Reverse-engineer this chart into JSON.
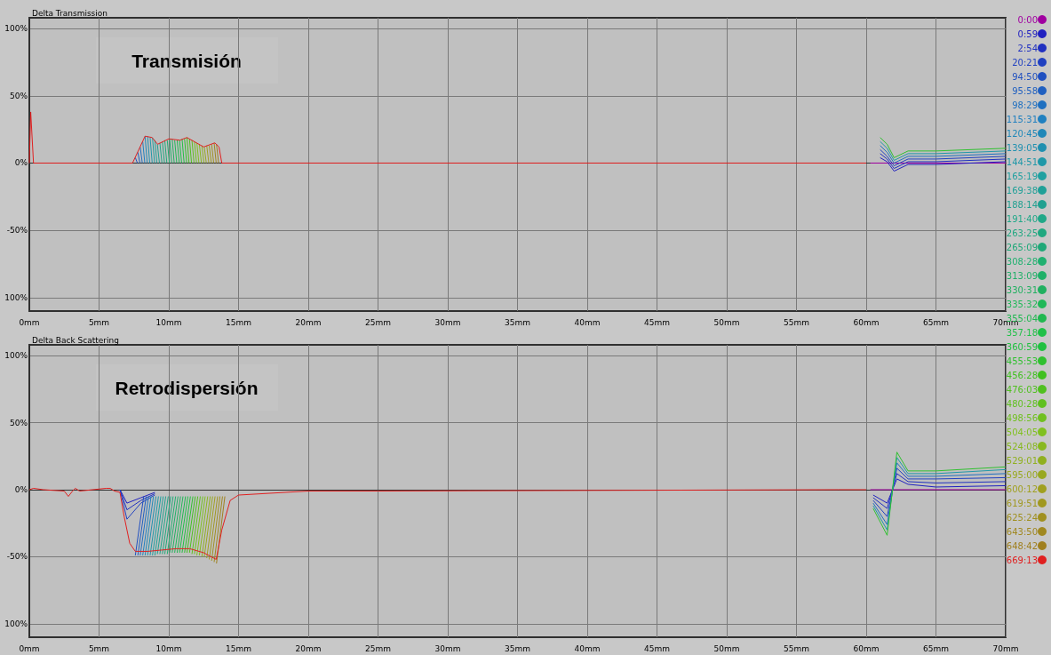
{
  "chart_data": [
    {
      "type": "line",
      "title": "Delta Transmission",
      "annotations": [
        "Transmisión"
      ],
      "legend": "right",
      "grid": true,
      "marker": "none",
      "line_style": "solid",
      "xlim": [
        0,
        70
      ],
      "xticks": [
        {
          "value": 0,
          "label": "0mm"
        },
        {
          "value": 5,
          "label": "5mm"
        },
        {
          "value": 10,
          "label": "10mm"
        },
        {
          "value": 15,
          "label": "15mm"
        },
        {
          "value": 20,
          "label": "20mm"
        },
        {
          "value": 25,
          "label": "25mm"
        },
        {
          "value": 30,
          "label": "30mm"
        },
        {
          "value": 35,
          "label": "35mm"
        },
        {
          "value": 40,
          "label": "40mm"
        },
        {
          "value": 45,
          "label": "45mm"
        },
        {
          "value": 50,
          "label": "50mm"
        },
        {
          "value": 55,
          "label": "55mm"
        },
        {
          "value": 60,
          "label": "60mm"
        },
        {
          "value": 65,
          "label": "65mm"
        },
        {
          "value": 70,
          "label": "70mm"
        }
      ],
      "ylim": [
        -110,
        108
      ],
      "yticks": [
        {
          "value": 100,
          "label": "100%"
        },
        {
          "value": 50,
          "label": "50%"
        },
        {
          "value": 0,
          "label": "0%"
        },
        {
          "value": -50,
          "label": "-50%"
        },
        {
          "value": -100,
          "label": "100%"
        }
      ],
      "series": [
        {
          "name": "0:00",
          "color": "#a000a0",
          "x": [
            60.3,
            70
          ],
          "values": [
            0,
            0
          ]
        },
        {
          "name": "0:59",
          "color": "#2020c0",
          "x": [
            61,
            61.5,
            62,
            63,
            65,
            70
          ],
          "values": [
            4,
            1,
            -6,
            -1,
            -1,
            1
          ]
        },
        {
          "name": "2:54",
          "color": "#2030c0",
          "x": [
            61,
            61.5,
            62,
            63,
            65,
            70
          ],
          "values": [
            7,
            3,
            -4,
            1,
            1,
            3
          ]
        },
        {
          "name": "20:21",
          "color": "#2040c0",
          "x": [
            61,
            61.5,
            62,
            63,
            65,
            70
          ],
          "values": [
            10,
            5,
            -2,
            3,
            3,
            5
          ]
        },
        {
          "name": "94:50",
          "color": "#2050c0",
          "x": [
            7.6,
            7.75
          ],
          "values": [
            4,
            0
          ]
        },
        {
          "name": "95:58",
          "color": "#2060c0",
          "x": [
            7.78,
            7.93
          ],
          "values": [
            8,
            0
          ]
        },
        {
          "name": "98:29",
          "color": "#2070c0",
          "x": [
            7.95,
            8.1,
            30,
            61,
            61.5,
            62,
            63,
            65,
            70
          ],
          "values": [
            12,
            0,
            null,
            13,
            8,
            0,
            5,
            5,
            7
          ]
        },
        {
          "name": "115:31",
          "color": "#2080c0",
          "x": [
            8.13,
            8.28
          ],
          "values": [
            16,
            0
          ]
        },
        {
          "name": "120:45",
          "color": "#2088b8",
          "x": [
            8.3,
            8.45
          ],
          "values": [
            20,
            0
          ]
        },
        {
          "name": "139:05",
          "color": "#2090b0",
          "x": [
            8.48,
            8.63
          ],
          "values": [
            20,
            0
          ]
        },
        {
          "name": "144:51",
          "color": "#2098a8",
          "x": [
            8.66,
            8.81,
            30,
            61,
            61.5,
            62,
            63,
            65,
            70
          ],
          "values": [
            19,
            0,
            null,
            16,
            11,
            2,
            7,
            7,
            9
          ]
        },
        {
          "name": "165:19",
          "color": "#20a0a0",
          "x": [
            8.83,
            8.98
          ],
          "values": [
            19,
            0
          ]
        },
        {
          "name": "169:38",
          "color": "#20a098",
          "x": [
            9.0,
            9.15
          ],
          "values": [
            17,
            0
          ]
        },
        {
          "name": "188:14",
          "color": "#20a090",
          "x": [
            9.18,
            9.33
          ],
          "values": [
            14,
            0
          ]
        },
        {
          "name": "191:40",
          "color": "#20a888",
          "x": [
            9.36,
            9.51
          ],
          "values": [
            15,
            0
          ]
        },
        {
          "name": "263:25",
          "color": "#20a880",
          "x": [
            9.54,
            9.69
          ],
          "values": [
            16,
            0
          ]
        },
        {
          "name": "265:09",
          "color": "#20a878",
          "x": [
            9.71,
            9.86
          ],
          "values": [
            17,
            0
          ]
        },
        {
          "name": "308:28",
          "color": "#20b070",
          "x": [
            9.89,
            10.04
          ],
          "values": [
            17,
            0
          ]
        },
        {
          "name": "313:09",
          "color": "#20b068",
          "x": [
            10.06,
            10.21
          ],
          "values": [
            18,
            0
          ]
        },
        {
          "name": "330:31",
          "color": "#20b060",
          "x": [
            10.24,
            10.39
          ],
          "values": [
            18,
            0
          ]
        },
        {
          "name": "335:32",
          "color": "#20b858",
          "x": [
            10.42,
            10.57
          ],
          "values": [
            17,
            0
          ]
        },
        {
          "name": "355:04",
          "color": "#20b850",
          "x": [
            10.6,
            10.75
          ],
          "values": [
            17,
            0
          ]
        },
        {
          "name": "357:18",
          "color": "#20c048",
          "x": [
            10.77,
            10.92
          ],
          "values": [
            17,
            0
          ]
        },
        {
          "name": "360:59",
          "color": "#20c040",
          "x": [
            10.95,
            11.1
          ],
          "values": [
            18,
            0
          ]
        },
        {
          "name": "455:53",
          "color": "#30c030",
          "x": [
            11.13,
            11.28,
            30,
            61,
            61.5,
            62,
            63,
            65,
            70
          ],
          "values": [
            18,
            0,
            null,
            19,
            14,
            4,
            9,
            9,
            11
          ]
        },
        {
          "name": "456:28",
          "color": "#40c020",
          "x": [
            11.3,
            11.45
          ],
          "values": [
            19,
            0
          ]
        },
        {
          "name": "476:03",
          "color": "#50c020",
          "x": [
            11.48,
            11.63
          ],
          "values": [
            18,
            0
          ]
        },
        {
          "name": "480:28",
          "color": "#60c020",
          "x": [
            11.66,
            11.81
          ],
          "values": [
            17,
            0
          ]
        },
        {
          "name": "498:56",
          "color": "#70c020",
          "x": [
            11.84,
            11.99
          ],
          "values": [
            16,
            0
          ]
        },
        {
          "name": "504:05",
          "color": "#80c020",
          "x": [
            12.01,
            12.16
          ],
          "values": [
            15,
            0
          ]
        },
        {
          "name": "524:08",
          "color": "#88b820",
          "x": [
            12.19,
            12.34
          ],
          "values": [
            14,
            0
          ]
        },
        {
          "name": "529:01",
          "color": "#90b020",
          "x": [
            12.37,
            12.52
          ],
          "values": [
            13,
            0
          ]
        },
        {
          "name": "595:00",
          "color": "#98a820",
          "x": [
            12.54,
            12.69
          ],
          "values": [
            12,
            0
          ]
        },
        {
          "name": "600:12",
          "color": "#a0a020",
          "x": [
            12.72,
            12.87
          ],
          "values": [
            13,
            0
          ]
        },
        {
          "name": "619:51",
          "color": "#a09820",
          "x": [
            12.9,
            13.05
          ],
          "values": [
            13,
            0
          ]
        },
        {
          "name": "625:24",
          "color": "#a09020",
          "x": [
            13.07,
            13.22
          ],
          "values": [
            14,
            0
          ]
        },
        {
          "name": "643:50",
          "color": "#a08820",
          "x": [
            13.25,
            13.4
          ],
          "values": [
            15,
            0
          ]
        },
        {
          "name": "648:42",
          "color": "#a08020",
          "x": [
            13.42,
            13.57
          ],
          "values": [
            14,
            0
          ]
        },
        {
          "name": "669:13",
          "color": "#e02020",
          "x": [
            0,
            0.1,
            0.3,
            7.4,
            8.3,
            8.8,
            9.2,
            10,
            10.8,
            11.3,
            12.5,
            13.3,
            13.6,
            13.8,
            60
          ],
          "values": [
            0,
            38,
            0,
            0,
            20,
            19,
            14,
            18,
            17,
            19,
            12,
            15,
            12,
            0,
            0
          ]
        }
      ]
    },
    {
      "type": "line",
      "title": "Delta Back Scattering",
      "annotations": [
        "Retrodispersión"
      ],
      "grid": true,
      "marker": "none",
      "line_style": "solid",
      "xlim": [
        0,
        70
      ],
      "xticks": [
        {
          "value": 0,
          "label": "0mm"
        },
        {
          "value": 5,
          "label": "5mm"
        },
        {
          "value": 10,
          "label": "10mm"
        },
        {
          "value": 15,
          "label": "15mm"
        },
        {
          "value": 20,
          "label": "20mm"
        },
        {
          "value": 25,
          "label": "25mm"
        },
        {
          "value": 30,
          "label": "30mm"
        },
        {
          "value": 35,
          "label": "35mm"
        },
        {
          "value": 40,
          "label": "40mm"
        },
        {
          "value": 45,
          "label": "45mm"
        },
        {
          "value": 50,
          "label": "50mm"
        },
        {
          "value": 55,
          "label": "55mm"
        },
        {
          "value": 60,
          "label": "60mm"
        },
        {
          "value": 65,
          "label": "65mm"
        },
        {
          "value": 70,
          "label": "70mm"
        }
      ],
      "ylim": [
        -110,
        108
      ],
      "yticks": [
        {
          "value": 100,
          "label": "100%"
        },
        {
          "value": 50,
          "label": "50%"
        },
        {
          "value": 0,
          "label": "0%"
        },
        {
          "value": -50,
          "label": "-50%"
        },
        {
          "value": -100,
          "label": "100%"
        }
      ],
      "series": [
        {
          "color": "#a000a0",
          "x": [
            60.3,
            70
          ],
          "values": [
            0,
            0
          ]
        },
        {
          "color": "#2020c0",
          "x": [
            6.5,
            7,
            8,
            9,
            30,
            60.5,
            61.5,
            62.2,
            63,
            65,
            70
          ],
          "values": [
            0,
            -10,
            -6,
            -2,
            null,
            -4,
            -10,
            8,
            4,
            2,
            3
          ]
        },
        {
          "color": "#2030c0",
          "x": [
            6.5,
            7,
            8,
            9,
            30,
            60.5,
            61.5,
            62.2,
            63,
            65,
            70
          ],
          "values": [
            0,
            -15,
            -8,
            -3,
            null,
            -6,
            -14,
            12,
            6,
            5,
            6
          ]
        },
        {
          "color": "#2040c0",
          "x": [
            6.5,
            7,
            8,
            9,
            30,
            60.5,
            61.5,
            62.2,
            63,
            65,
            70
          ],
          "values": [
            0,
            -22,
            -10,
            -4,
            null,
            -8,
            -20,
            16,
            8,
            8,
            9
          ]
        },
        {
          "color": "#2050c0",
          "x": [
            7.6,
            8.2
          ],
          "values": [
            -49,
            -5
          ]
        },
        {
          "color": "#2060c0",
          "x": [
            7.78,
            8.38
          ],
          "values": [
            -49,
            -5
          ]
        },
        {
          "color": "#2070c0",
          "x": [
            7.95,
            8.55,
            30,
            60.5,
            61.5,
            62.2,
            63,
            65,
            70
          ],
          "values": [
            -49,
            -5,
            null,
            -10,
            -26,
            20,
            10,
            10,
            12
          ]
        },
        {
          "color": "#2080c0",
          "x": [
            8.13,
            8.73
          ],
          "values": [
            -49,
            -5
          ]
        },
        {
          "color": "#2088b8",
          "x": [
            8.3,
            8.9
          ],
          "values": [
            -49,
            -5
          ]
        },
        {
          "color": "#2090b0",
          "x": [
            8.48,
            9.08
          ],
          "values": [
            -49,
            -5
          ]
        },
        {
          "color": "#2098a8",
          "x": [
            8.66,
            9.26,
            30,
            60.5,
            61.5,
            62.2,
            63,
            65,
            70
          ],
          "values": [
            -49,
            -5,
            null,
            -12,
            -30,
            24,
            12,
            12,
            15
          ]
        },
        {
          "color": "#20a0a0",
          "x": [
            8.83,
            9.43
          ],
          "values": [
            -49,
            -5
          ]
        },
        {
          "color": "#20a098",
          "x": [
            9.0,
            9.6
          ],
          "values": [
            -49,
            -5
          ]
        },
        {
          "color": "#20a090",
          "x": [
            9.18,
            9.78
          ],
          "values": [
            -48,
            -5
          ]
        },
        {
          "color": "#20a888",
          "x": [
            9.36,
            9.96
          ],
          "values": [
            -48,
            -5
          ]
        },
        {
          "color": "#20a880",
          "x": [
            9.54,
            10.14
          ],
          "values": [
            -48,
            -5
          ]
        },
        {
          "color": "#20a878",
          "x": [
            9.71,
            10.31
          ],
          "values": [
            -48,
            -5
          ]
        },
        {
          "color": "#20b070",
          "x": [
            9.89,
            10.49
          ],
          "values": [
            -48,
            -5
          ]
        },
        {
          "color": "#20b068",
          "x": [
            10.06,
            10.66
          ],
          "values": [
            -47,
            -5
          ]
        },
        {
          "color": "#20b060",
          "x": [
            10.24,
            10.84
          ],
          "values": [
            -47,
            -5
          ]
        },
        {
          "color": "#20b858",
          "x": [
            10.42,
            11.02
          ],
          "values": [
            -47,
            -5
          ]
        },
        {
          "color": "#20b850",
          "x": [
            10.6,
            11.2
          ],
          "values": [
            -47,
            -5
          ]
        },
        {
          "color": "#20c048",
          "x": [
            10.77,
            11.37
          ],
          "values": [
            -47,
            -5
          ]
        },
        {
          "color": "#20c040",
          "x": [
            10.95,
            11.55
          ],
          "values": [
            -47,
            -5
          ]
        },
        {
          "color": "#30c030",
          "x": [
            11.13,
            11.73,
            30,
            60.5,
            61.5,
            62.2,
            63,
            65,
            70
          ],
          "values": [
            -47,
            -5,
            null,
            -14,
            -34,
            28,
            14,
            14,
            17
          ]
        },
        {
          "color": "#40c020",
          "x": [
            11.3,
            11.9
          ],
          "values": [
            -47,
            -5
          ]
        },
        {
          "color": "#50c020",
          "x": [
            11.48,
            12.08
          ],
          "values": [
            -47,
            -5
          ]
        },
        {
          "color": "#60c020",
          "x": [
            11.66,
            12.26
          ],
          "values": [
            -48,
            -5
          ]
        },
        {
          "color": "#70c020",
          "x": [
            11.84,
            12.44
          ],
          "values": [
            -48,
            -5
          ]
        },
        {
          "color": "#80c020",
          "x": [
            12.01,
            12.61
          ],
          "values": [
            -49,
            -5
          ]
        },
        {
          "color": "#88b820",
          "x": [
            12.19,
            12.79
          ],
          "values": [
            -49,
            -5
          ]
        },
        {
          "color": "#90b020",
          "x": [
            12.37,
            12.97
          ],
          "values": [
            -50,
            -5
          ]
        },
        {
          "color": "#98a820",
          "x": [
            12.54,
            13.14
          ],
          "values": [
            -50,
            -5
          ]
        },
        {
          "color": "#a0a020",
          "x": [
            12.72,
            13.32
          ],
          "values": [
            -51,
            -5
          ]
        },
        {
          "color": "#a09820",
          "x": [
            12.9,
            13.5
          ],
          "values": [
            -52,
            -5
          ]
        },
        {
          "color": "#a09020",
          "x": [
            13.07,
            13.67
          ],
          "values": [
            -53,
            -5
          ]
        },
        {
          "color": "#a08820",
          "x": [
            13.25,
            13.85
          ],
          "values": [
            -54,
            -5
          ]
        },
        {
          "color": "#a08020",
          "x": [
            13.42,
            14.02
          ],
          "values": [
            -55,
            -5
          ]
        },
        {
          "color": "#e02020",
          "x": [
            0,
            0.3,
            1,
            2.5,
            2.8,
            3.1,
            3.3,
            3.6,
            5.5,
            5.8,
            6.1,
            6.5,
            6.8,
            7.2,
            7.6,
            8.5,
            9.5,
            10.5,
            11.5,
            12.5,
            13.4,
            13.8,
            14.4,
            15,
            20,
            25,
            58,
            60
          ],
          "values": [
            0,
            1,
            0,
            -1,
            -5,
            -1,
            1,
            -1,
            1,
            1,
            -1,
            -2,
            -20,
            -40,
            -46,
            -46,
            -45,
            -44,
            -44,
            -47,
            -52,
            -30,
            -8,
            -4,
            -1,
            -1,
            0,
            0
          ]
        }
      ]
    }
  ]
}
